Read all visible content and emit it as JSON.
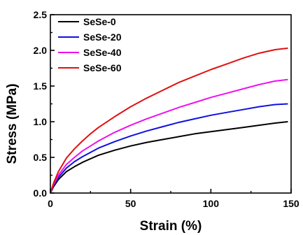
{
  "chart_data": {
    "type": "line",
    "title": "",
    "xlabel": "Strain (%)",
    "ylabel": "Stress (MPa)",
    "xlim": [
      0,
      150
    ],
    "ylim": [
      0,
      2.5
    ],
    "xticks": [
      "0",
      "50",
      "100",
      "150"
    ],
    "yticks": [
      "0.0",
      "0.5",
      "1.0",
      "1.5",
      "2.0",
      "2.5"
    ],
    "grid": false,
    "legend_position": "top-left",
    "series": [
      {
        "name": "SeSe-0",
        "color": "#000000",
        "x": [
          0,
          2,
          5,
          10,
          15,
          20,
          25,
          30,
          40,
          50,
          60,
          70,
          80,
          90,
          100,
          110,
          120,
          130,
          140,
          148
        ],
        "y": [
          0,
          0.09,
          0.19,
          0.3,
          0.37,
          0.43,
          0.48,
          0.53,
          0.6,
          0.66,
          0.71,
          0.75,
          0.79,
          0.83,
          0.86,
          0.89,
          0.92,
          0.95,
          0.98,
          1.0
        ]
      },
      {
        "name": "SeSe-20",
        "color": "#1010e0",
        "x": [
          0,
          2,
          5,
          10,
          15,
          20,
          25,
          30,
          40,
          50,
          60,
          70,
          80,
          90,
          100,
          110,
          120,
          130,
          140,
          148
        ],
        "y": [
          0,
          0.11,
          0.22,
          0.35,
          0.44,
          0.51,
          0.57,
          0.63,
          0.72,
          0.8,
          0.87,
          0.93,
          0.99,
          1.04,
          1.09,
          1.13,
          1.17,
          1.21,
          1.24,
          1.25
        ]
      },
      {
        "name": "SeSe-40",
        "color": "#ee10ee",
        "x": [
          0,
          2,
          5,
          10,
          15,
          20,
          25,
          30,
          40,
          50,
          60,
          70,
          80,
          90,
          100,
          110,
          120,
          130,
          140,
          148
        ],
        "y": [
          0,
          0.12,
          0.25,
          0.4,
          0.5,
          0.59,
          0.66,
          0.73,
          0.85,
          0.95,
          1.04,
          1.12,
          1.2,
          1.27,
          1.34,
          1.4,
          1.46,
          1.52,
          1.57,
          1.59
        ]
      },
      {
        "name": "SeSe-60",
        "color": "#e01010",
        "x": [
          0,
          2,
          5,
          10,
          15,
          20,
          25,
          30,
          40,
          50,
          60,
          70,
          80,
          90,
          100,
          110,
          120,
          130,
          140,
          148
        ],
        "y": [
          0,
          0.14,
          0.3,
          0.49,
          0.62,
          0.73,
          0.83,
          0.92,
          1.07,
          1.21,
          1.33,
          1.44,
          1.55,
          1.64,
          1.73,
          1.81,
          1.89,
          1.96,
          2.01,
          2.03
        ]
      }
    ]
  }
}
